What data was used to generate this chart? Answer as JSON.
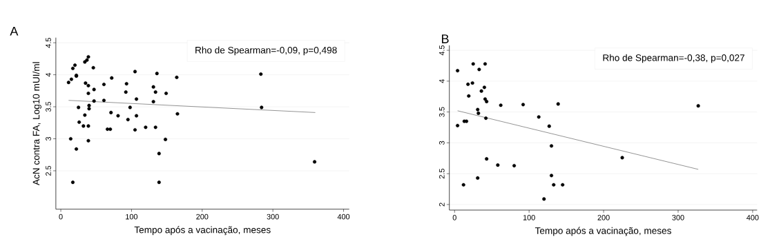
{
  "chart_data": [
    {
      "type": "scatter",
      "title": "A",
      "xlabel": "Tempo após a vacinação, meses",
      "ylabel": "AcN contra FA, Log10 mUI/ml",
      "annotations": [
        "Rho de Spearman=-0,09, p=0,498"
      ],
      "xlim": [
        -7,
        408
      ],
      "ylim": [
        1.9,
        4.58
      ],
      "xticks": [
        0,
        100,
        200,
        300,
        400
      ],
      "yticks": [
        2.5,
        3,
        3.5,
        4,
        4.5
      ],
      "grid": "y",
      "series": [
        {
          "marker": "circle",
          "color": "#000000",
          "x": [
            11,
            15,
            17,
            20,
            22,
            22,
            14,
            17,
            22,
            25,
            26,
            32,
            34,
            34,
            37,
            39,
            35,
            39,
            39,
            40,
            40,
            39,
            39,
            46,
            47,
            47,
            61,
            61,
            71,
            66,
            70,
            72,
            81,
            93,
            92,
            98,
            95,
            105,
            105,
            107,
            107,
            120,
            131,
            131,
            134,
            134,
            136,
            139,
            139,
            148,
            149,
            164,
            165,
            283,
            284,
            359
          ],
          "values": [
            3.88,
            3.93,
            4.1,
            4.15,
            3.98,
            3.99,
            3.0,
            2.32,
            2.84,
            3.49,
            3.26,
            3.2,
            3.37,
            4.2,
            4.23,
            4.28,
            3.87,
            3.83,
            3.71,
            3.47,
            3.52,
            3.2,
            2.97,
            4.11,
            3.77,
            3.59,
            3.85,
            3.6,
            3.41,
            3.15,
            3.15,
            3.95,
            3.36,
            3.86,
            3.73,
            3.49,
            3.3,
            4.05,
            3.14,
            3.62,
            3.36,
            3.18,
            3.81,
            3.58,
            3.73,
            3.18,
            4.02,
            2.77,
            2.32,
            2.99,
            3.71,
            3.96,
            3.39,
            4.01,
            3.49,
            2.64
          ]
        },
        {
          "type": "line",
          "marker": "none",
          "color": "#555555",
          "x": [
            11,
            360
          ],
          "values": [
            3.6,
            3.41
          ]
        }
      ]
    },
    {
      "type": "scatter",
      "title": "B",
      "xlabel": "Tempo após a vacinação, meses",
      "annotations": [
        "Rho de Spearman=-0,38, p=0,027"
      ],
      "xlim": [
        -7,
        406
      ],
      "ylim": [
        1.91,
        4.58
      ],
      "xticks": [
        0,
        100,
        200,
        300,
        400
      ],
      "yticks": [
        2,
        2.5,
        3,
        3.5,
        4,
        4.5
      ],
      "grid": "y",
      "series": [
        {
          "marker": "circle",
          "color": "#000000",
          "x": [
            4,
            4,
            12,
            13,
            16,
            18,
            19,
            24,
            25,
            33,
            41,
            36,
            40,
            41,
            43,
            31,
            32,
            42,
            31,
            43,
            58,
            62,
            80,
            92,
            113,
            127,
            130,
            130,
            133,
            145,
            120,
            139,
            225,
            327
          ],
          "values": [
            4.17,
            3.28,
            2.32,
            3.35,
            3.35,
            3.95,
            3.76,
            3.97,
            4.28,
            4.19,
            4.28,
            3.84,
            3.9,
            3.71,
            3.67,
            3.54,
            3.48,
            3.4,
            2.43,
            2.74,
            2.64,
            3.61,
            2.63,
            3.62,
            3.42,
            3.27,
            2.95,
            2.47,
            2.32,
            2.32,
            2.09,
            3.63,
            2.76,
            3.6
          ]
        },
        {
          "type": "line",
          "marker": "none",
          "color": "#555555",
          "x": [
            4,
            327
          ],
          "values": [
            3.52,
            2.57
          ]
        }
      ]
    }
  ]
}
